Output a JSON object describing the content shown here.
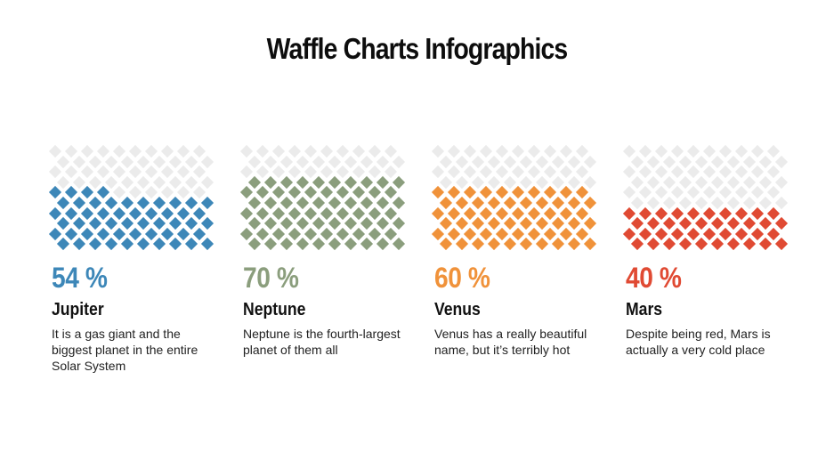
{
  "title": "Waffle Charts Infographics",
  "colors": {
    "empty": "#ebebeb",
    "jupiter": "#3d87b8",
    "neptune": "#8b9e7d",
    "venus": "#f0923a",
    "mars": "#e04a33"
  },
  "cards": [
    {
      "percent_label": "54 %",
      "name": "Jupiter",
      "description": "It is a gas giant and the biggest planet in the entire Solar System",
      "value": 54,
      "color": "#3d87b8"
    },
    {
      "percent_label": "70 %",
      "name": "Neptune",
      "description": "Neptune is the fourth-largest planet of them all",
      "value": 70,
      "color": "#8b9e7d"
    },
    {
      "percent_label": "60 %",
      "name": "Venus",
      "description": "Venus has a really beautiful name, but it’s terribly hot",
      "value": 60,
      "color": "#f0923a"
    },
    {
      "percent_label": "40 %",
      "name": "Mars",
      "description": "Despite being red, Mars is actually a very cold place",
      "value": 40,
      "color": "#e04a33"
    }
  ],
  "chart_data": {
    "type": "waffle",
    "title": "Waffle Charts Infographics",
    "grid": {
      "rows": 10,
      "cols": 10,
      "total": 100
    },
    "categories": [
      "Jupiter",
      "Neptune",
      "Venus",
      "Mars"
    ],
    "values": [
      54,
      70,
      60,
      40
    ],
    "unit": "%",
    "colors": [
      "#3d87b8",
      "#8b9e7d",
      "#f0923a",
      "#e04a33"
    ],
    "empty_color": "#ebebeb",
    "fill_direction": "bottom-up, left-to-right"
  }
}
